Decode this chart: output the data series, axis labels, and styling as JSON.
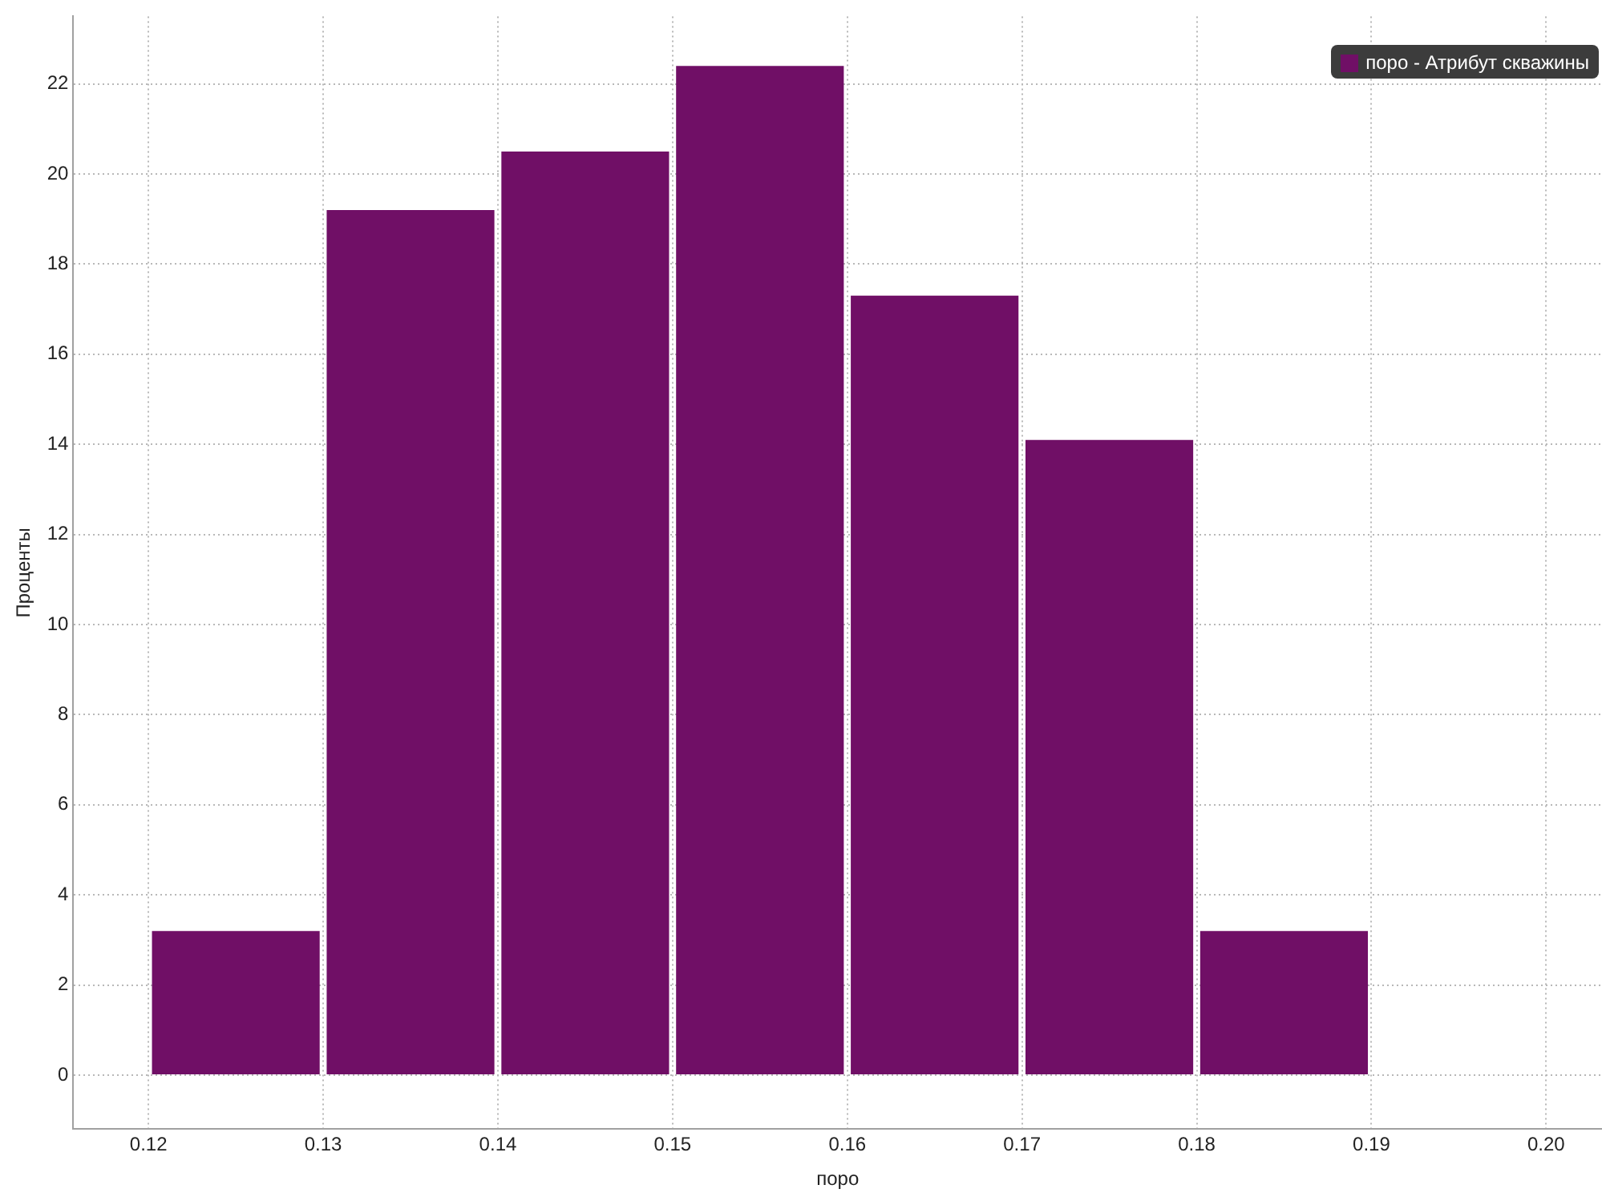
{
  "chart_data": {
    "type": "histogram",
    "xlabel": "поро",
    "ylabel": "Проценты",
    "bins": [
      0.12,
      0.13,
      0.14,
      0.15,
      0.16,
      0.17,
      0.18,
      0.19
    ],
    "series": [
      {
        "name": "поро - Атрибут скважины",
        "color": "#700f66",
        "values": [
          3.2,
          19.2,
          20.5,
          22.4,
          17.3,
          14.1,
          3.2
        ]
      }
    ],
    "xlim": [
      0.1157,
      0.2032
    ],
    "xticks": [
      {
        "value": 0.12,
        "label": "0.12"
      },
      {
        "value": 0.13,
        "label": "0.13"
      },
      {
        "value": 0.14,
        "label": "0.14"
      },
      {
        "value": 0.15,
        "label": "0.15"
      },
      {
        "value": 0.16,
        "label": "0.16"
      },
      {
        "value": 0.17,
        "label": "0.17"
      },
      {
        "value": 0.18,
        "label": "0.18"
      },
      {
        "value": 0.19,
        "label": "0.19"
      },
      {
        "value": 0.2,
        "label": "0.20"
      }
    ],
    "ylim": [
      -1.2,
      23.5
    ],
    "yticks": [
      0,
      2,
      4,
      6,
      8,
      10,
      12,
      14,
      16,
      18,
      20,
      22
    ],
    "grid": true,
    "legend": "top right"
  }
}
